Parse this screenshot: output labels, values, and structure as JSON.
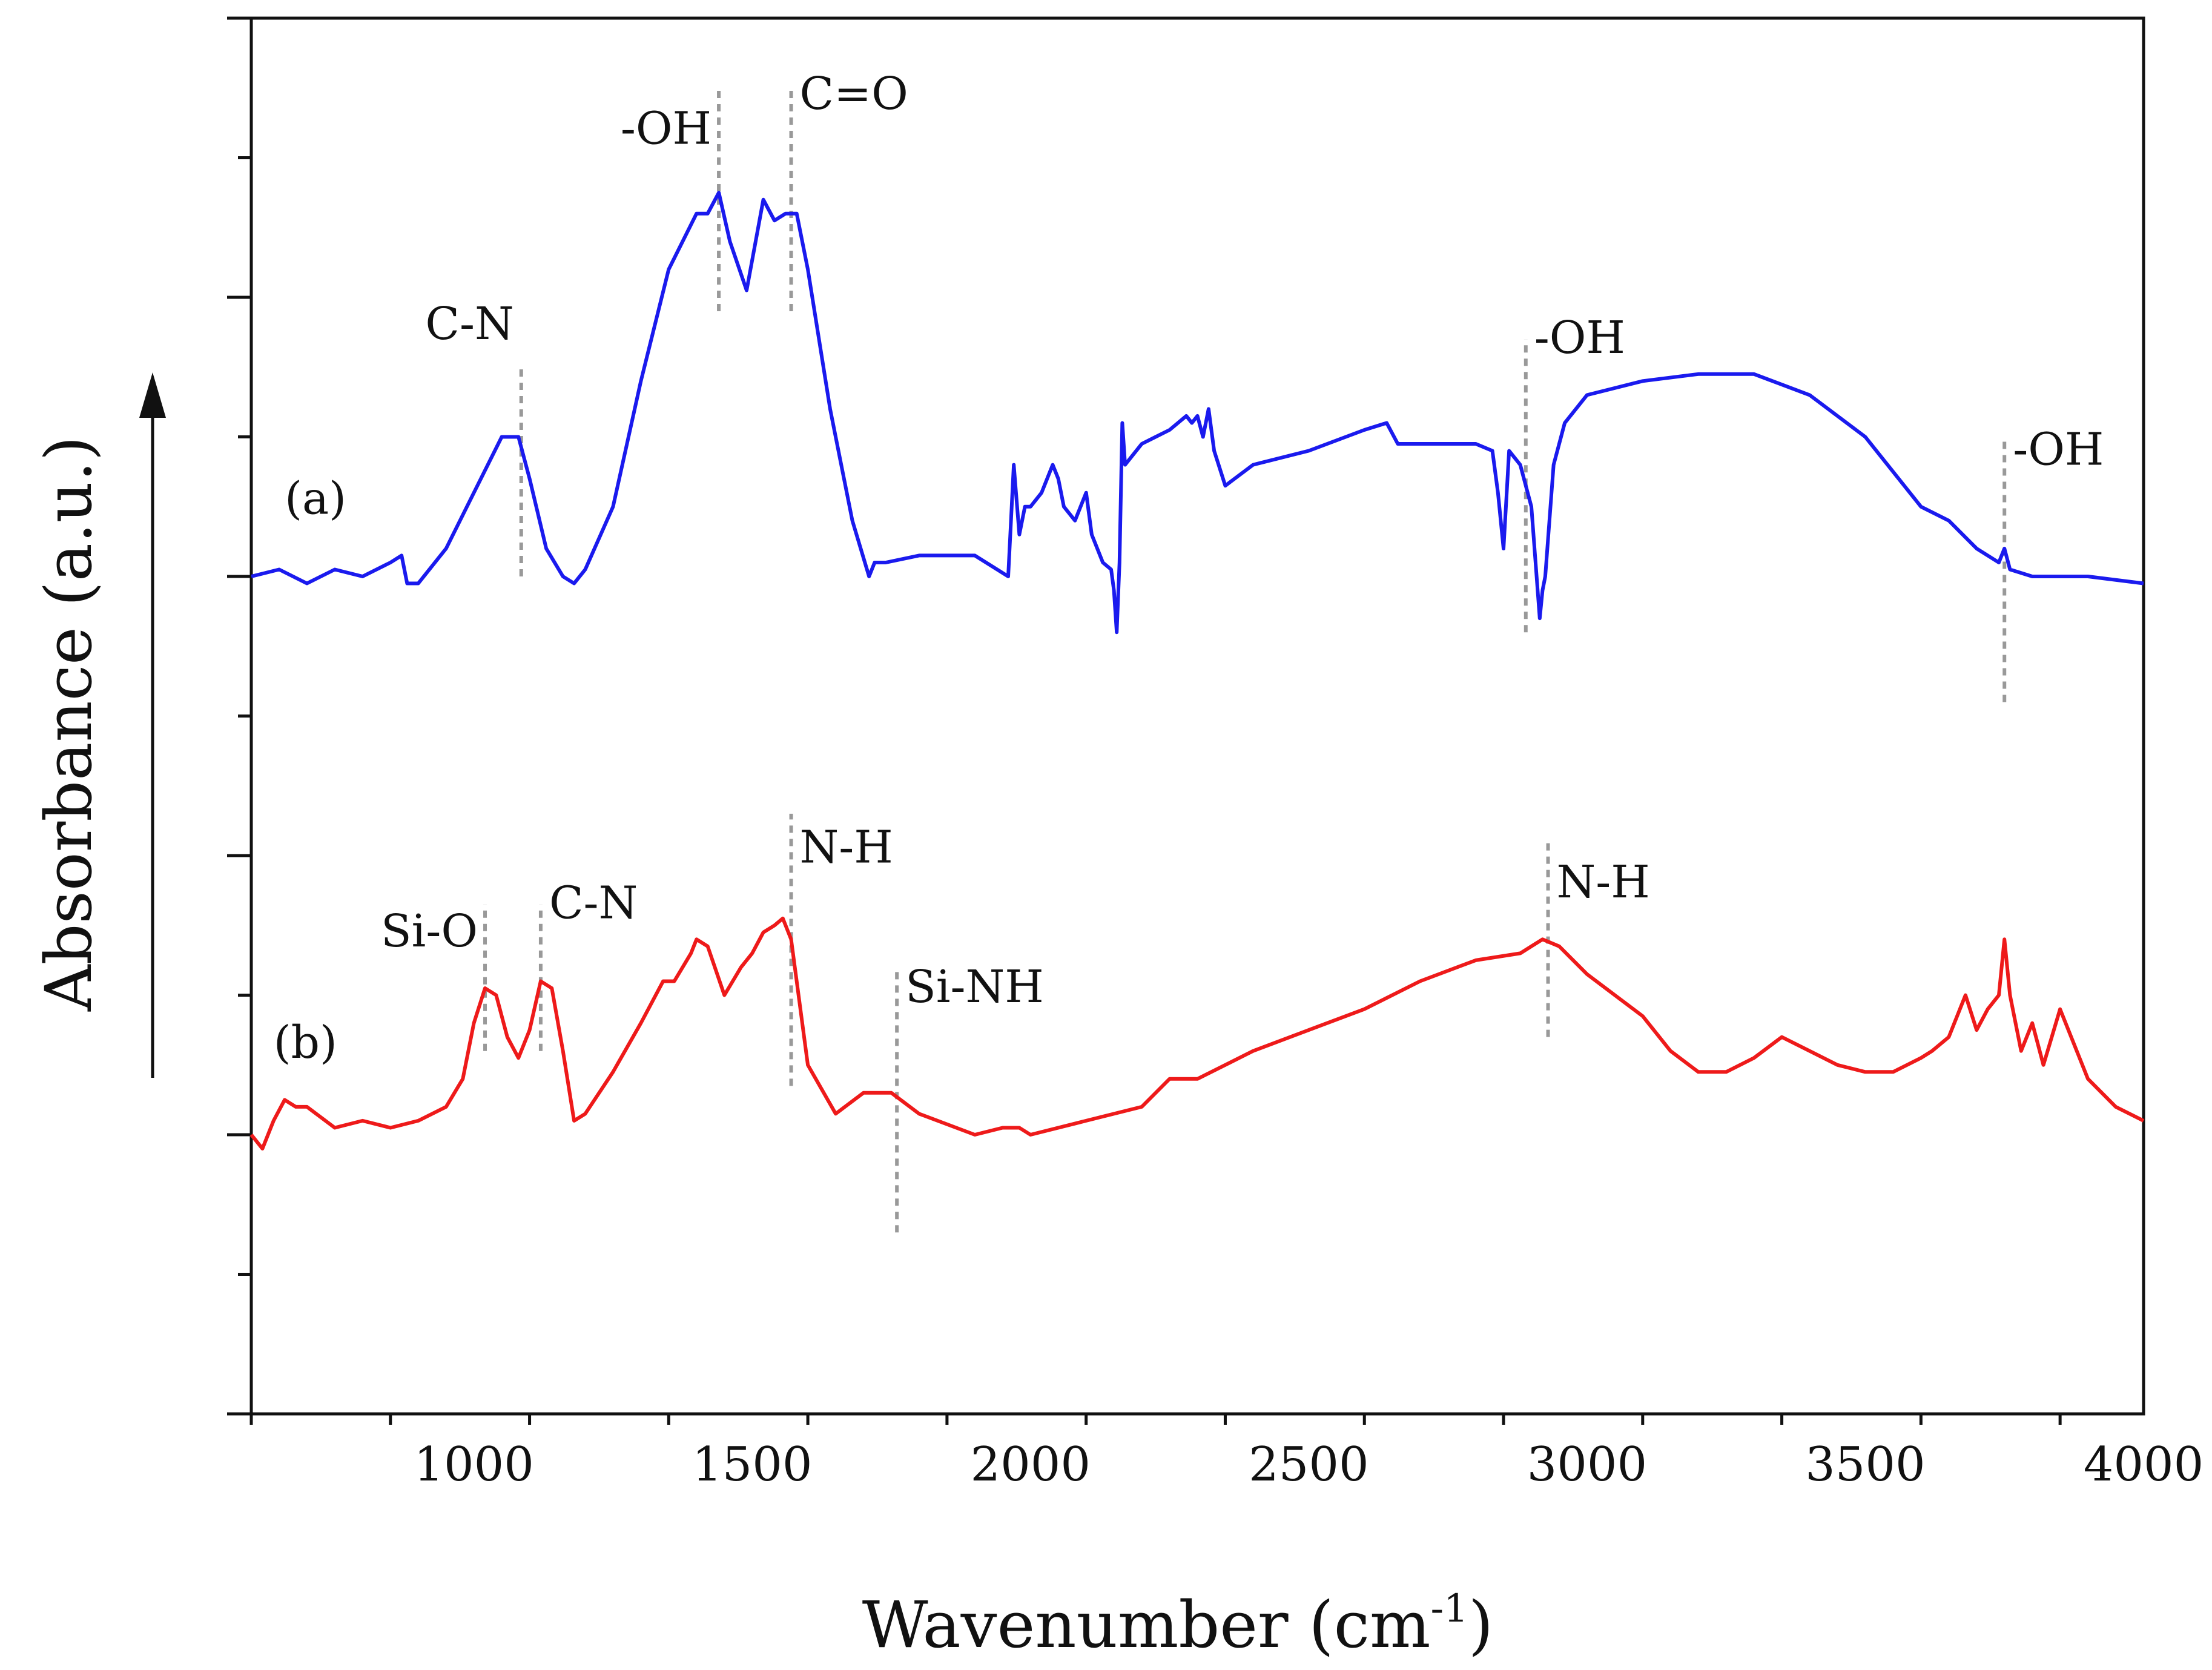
{
  "chart_data": {
    "type": "line",
    "title": "",
    "xlabel": "Wavenumber (cm",
    "xlabel_sup": "-1",
    "xlabel_close": ")",
    "ylabel": "Absorbance (a.u.)",
    "xlim": [
      600,
      4000
    ],
    "ylim": [
      0,
      10
    ],
    "x_ticks": [
      1000,
      1500,
      2000,
      2500,
      3000,
      3500,
      4000
    ],
    "x_tick_labels": [
      "1000",
      "1500",
      "2000",
      "2500",
      "3000",
      "3500",
      "4000"
    ],
    "grid": false,
    "colors": {
      "a": "#1a1aee",
      "b": "#ee1a1a",
      "axis": "#111111",
      "marker": "#999999"
    },
    "series": [
      {
        "name": "(a)",
        "color": "#1a1aee",
        "x": [
          600,
          650,
          700,
          750,
          800,
          850,
          870,
          880,
          900,
          950,
          1000,
          1050,
          1080,
          1100,
          1130,
          1160,
          1180,
          1200,
          1250,
          1300,
          1350,
          1400,
          1420,
          1440,
          1460,
          1490,
          1520,
          1540,
          1560,
          1580,
          1600,
          1640,
          1680,
          1710,
          1720,
          1740,
          1800,
          1900,
          1960,
          1970,
          1980,
          1990,
          2000,
          2020,
          2040,
          2050,
          2060,
          2080,
          2100,
          2110,
          2130,
          2145,
          2150,
          2155,
          2160,
          2165,
          2170,
          2200,
          2250,
          2280,
          2290,
          2300,
          2310,
          2320,
          2330,
          2350,
          2400,
          2500,
          2600,
          2640,
          2660,
          2700,
          2800,
          2830,
          2840,
          2850,
          2860,
          2880,
          2900,
          2915,
          2920,
          2925,
          2940,
          2960,
          3000,
          3100,
          3200,
          3260,
          3300,
          3400,
          3500,
          3600,
          3650,
          3700,
          3740,
          3750,
          3760,
          3800,
          3900,
          4000
        ],
        "y": [
          6.0,
          6.05,
          5.95,
          6.05,
          6.0,
          6.1,
          6.15,
          5.95,
          5.95,
          6.2,
          6.6,
          7.0,
          7.0,
          6.7,
          6.2,
          6.0,
          5.95,
          6.05,
          6.5,
          7.4,
          8.2,
          8.6,
          8.6,
          8.75,
          8.4,
          8.05,
          8.7,
          8.55,
          8.6,
          8.6,
          8.2,
          7.2,
          6.4,
          6.0,
          6.1,
          6.1,
          6.15,
          6.15,
          6.0,
          6.8,
          6.3,
          6.5,
          6.5,
          6.6,
          6.8,
          6.7,
          6.5,
          6.4,
          6.6,
          6.3,
          6.1,
          6.05,
          5.9,
          5.6,
          6.1,
          7.1,
          6.8,
          6.95,
          7.05,
          7.15,
          7.1,
          7.15,
          7.0,
          7.2,
          6.9,
          6.65,
          6.8,
          6.9,
          7.05,
          7.1,
          6.95,
          6.95,
          6.95,
          6.9,
          6.6,
          6.2,
          6.9,
          6.8,
          6.5,
          5.7,
          5.9,
          6.0,
          6.8,
          7.1,
          7.3,
          7.4,
          7.45,
          7.45,
          7.45,
          7.3,
          7.0,
          6.5,
          6.4,
          6.2,
          6.1,
          6.2,
          6.05,
          6.0,
          6.0,
          5.95
        ]
      },
      {
        "name": "(b)",
        "color": "#ee1a1a",
        "x": [
          600,
          620,
          640,
          660,
          680,
          700,
          750,
          800,
          850,
          900,
          950,
          980,
          1000,
          1020,
          1040,
          1060,
          1080,
          1100,
          1120,
          1140,
          1160,
          1180,
          1200,
          1250,
          1300,
          1340,
          1360,
          1390,
          1400,
          1420,
          1450,
          1480,
          1500,
          1520,
          1540,
          1555,
          1570,
          1600,
          1650,
          1700,
          1750,
          1800,
          1900,
          1950,
          1980,
          2000,
          2100,
          2200,
          2250,
          2300,
          2400,
          2500,
          2600,
          2700,
          2800,
          2880,
          2900,
          2920,
          2950,
          3000,
          3050,
          3100,
          3150,
          3200,
          3250,
          3300,
          3350,
          3400,
          3450,
          3500,
          3550,
          3600,
          3620,
          3650,
          3680,
          3700,
          3720,
          3740,
          3750,
          3760,
          3780,
          3800,
          3820,
          3850,
          3880,
          3900,
          3950,
          4000
        ],
        "y": [
          2.0,
          1.9,
          2.1,
          2.25,
          2.2,
          2.2,
          2.05,
          2.1,
          2.05,
          2.1,
          2.2,
          2.4,
          2.8,
          3.05,
          3.0,
          2.7,
          2.55,
          2.75,
          3.1,
          3.05,
          2.6,
          2.1,
          2.15,
          2.45,
          2.8,
          3.1,
          3.1,
          3.3,
          3.4,
          3.35,
          3.0,
          3.2,
          3.3,
          3.45,
          3.5,
          3.55,
          3.4,
          2.5,
          2.15,
          2.3,
          2.3,
          2.15,
          2.0,
          2.05,
          2.05,
          2.0,
          2.1,
          2.2,
          2.4,
          2.4,
          2.6,
          2.75,
          2.9,
          3.1,
          3.25,
          3.3,
          3.35,
          3.4,
          3.35,
          3.15,
          3.0,
          2.85,
          2.6,
          2.45,
          2.45,
          2.55,
          2.7,
          2.6,
          2.5,
          2.45,
          2.45,
          2.55,
          2.6,
          2.7,
          3.0,
          2.75,
          2.9,
          3.0,
          3.4,
          3.0,
          2.6,
          2.8,
          2.5,
          2.9,
          2.6,
          2.4,
          2.2,
          2.1
        ]
      }
    ],
    "annotations": [
      {
        "text": "C-N",
        "series": "a",
        "x": 1085,
        "line_y": [
          6.0,
          7.5
        ],
        "label_y": 7.7,
        "anchor": "end"
      },
      {
        "text": "-OH",
        "series": "a",
        "x": 1440,
        "line_y": [
          7.9,
          9.5
        ],
        "label_y": 9.1,
        "anchor": "end"
      },
      {
        "text": "C=O",
        "series": "a",
        "x": 1570,
        "line_y": [
          7.9,
          9.5
        ],
        "label_y": 9.35,
        "anchor": "start"
      },
      {
        "text": "-OH",
        "series": "a",
        "x": 2890,
        "line_y": [
          5.6,
          7.7
        ],
        "label_y": 7.6,
        "anchor": "start"
      },
      {
        "text": "-OH",
        "series": "a",
        "x": 3750,
        "line_y": [
          5.1,
          7.0
        ],
        "label_y": 6.8,
        "anchor": "start"
      },
      {
        "text": "Si-O",
        "series": "b",
        "x": 1020,
        "line_y": [
          2.6,
          3.65
        ],
        "label_y": 3.35,
        "anchor": "end"
      },
      {
        "text": "C-N",
        "series": "b",
        "x": 1120,
        "line_y": [
          2.6,
          3.65
        ],
        "label_y": 3.55,
        "anchor": "start"
      },
      {
        "text": "N-H",
        "series": "b",
        "x": 1570,
        "line_y": [
          2.35,
          4.3
        ],
        "label_y": 3.95,
        "anchor": "start"
      },
      {
        "text": "Si-NH",
        "series": "b",
        "x": 1760,
        "line_y": [
          1.3,
          3.2
        ],
        "label_y": 2.95,
        "anchor": "start"
      },
      {
        "text": "N-H",
        "series": "b",
        "x": 2930,
        "line_y": [
          2.7,
          4.1
        ],
        "label_y": 3.7,
        "anchor": "start"
      }
    ],
    "series_labels": [
      {
        "text": "(a)",
        "x": 660,
        "y": 6.45
      },
      {
        "text": "(b)",
        "x": 640,
        "y": 2.55
      }
    ]
  }
}
